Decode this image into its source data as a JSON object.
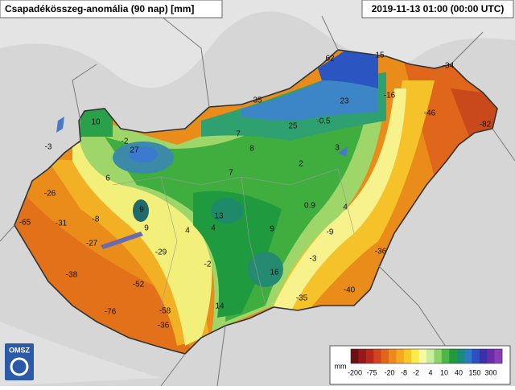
{
  "header": {
    "title": "Csapadékösszeg-anomália (90 nap) [mm]",
    "timestamp": "2019-11-13 01:00 (00:00 UTC)"
  },
  "logo": "OMSZ",
  "stations": [
    62,
    15,
    -34,
    35,
    23,
    -16,
    10,
    -46,
    25,
    -0.5,
    -82,
    -2,
    7,
    27,
    8,
    3,
    -3,
    2,
    7,
    6,
    -26,
    0.9,
    4,
    9,
    13,
    -8,
    -31,
    -65,
    9,
    4,
    4,
    9,
    -9,
    -27,
    -29,
    -36,
    -2,
    -3,
    16,
    -38,
    -52,
    -40,
    -35,
    14,
    -76,
    -58,
    -36
  ],
  "legend": {
    "unit": "mm",
    "labels": [
      -200,
      -75,
      -20,
      -8,
      -2,
      4,
      10,
      40,
      150,
      300
    ]
  }
}
